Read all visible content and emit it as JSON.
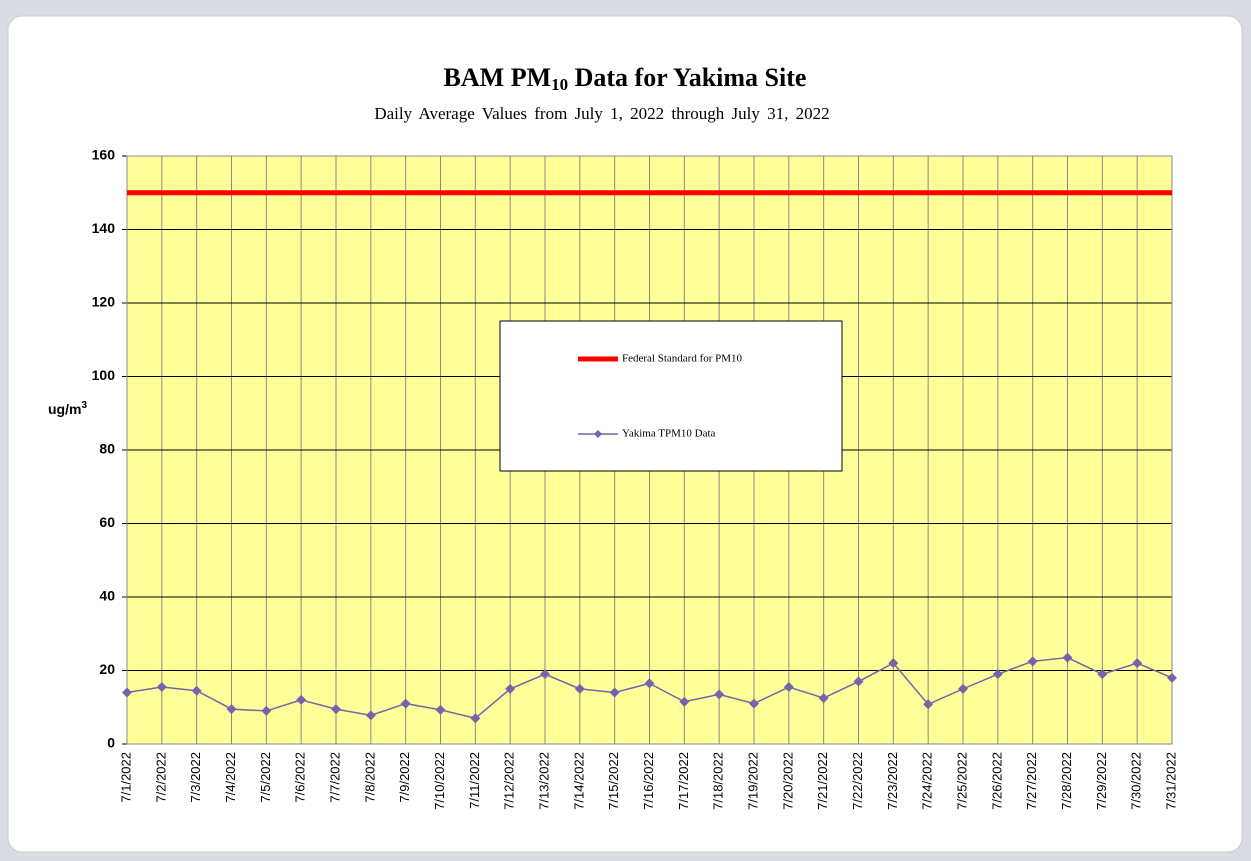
{
  "chart_data": {
    "type": "line",
    "title": [
      "BAM PM",
      "10",
      " Data for Yakima Site"
    ],
    "subtitle": "Daily Average Values from July 1, 2022 through July 31, 2022",
    "y_label": [
      "ug/m",
      "3"
    ],
    "categories": [
      "7/1/2022",
      "7/2/2022",
      "7/3/2022",
      "7/4/2022",
      "7/5/2022",
      "7/6/2022",
      "7/7/2022",
      "7/8/2022",
      "7/9/2022",
      "7/10/2022",
      "7/11/2022",
      "7/12/2022",
      "7/13/2022",
      "7/14/2022",
      "7/15/2022",
      "7/16/2022",
      "7/17/2022",
      "7/18/2022",
      "7/19/2022",
      "7/20/2022",
      "7/21/2022",
      "7/22/2022",
      "7/23/2022",
      "7/24/2022",
      "7/25/2022",
      "7/26/2022",
      "7/27/2022",
      "7/28/2022",
      "7/29/2022",
      "7/30/2022",
      "7/31/2022"
    ],
    "series": [
      {
        "name": "Federal Standard for PM10",
        "color": "#ff0000",
        "markers": false,
        "values": [
          150,
          150,
          150,
          150,
          150,
          150,
          150,
          150,
          150,
          150,
          150,
          150,
          150,
          150,
          150,
          150,
          150,
          150,
          150,
          150,
          150,
          150,
          150,
          150,
          150,
          150,
          150,
          150,
          150,
          150,
          150
        ]
      },
      {
        "name": "Yakima TPM10 Data",
        "color": "#7464ac",
        "markers": true,
        "values": [
          14,
          15.5,
          14.5,
          9.5,
          9,
          12,
          9.5,
          7.8,
          11,
          9.3,
          7,
          15,
          19,
          15,
          14,
          16.5,
          11.5,
          13.5,
          11,
          15.5,
          12.5,
          17,
          22,
          10.8,
          15,
          19,
          22.5,
          23.5,
          19,
          22,
          18
        ]
      }
    ],
    "ylim": [
      0,
      160
    ],
    "yticks": [
      0,
      20,
      40,
      60,
      80,
      100,
      120,
      140,
      160
    ],
    "grid": true,
    "background": "#ffff99",
    "legend": "center"
  }
}
